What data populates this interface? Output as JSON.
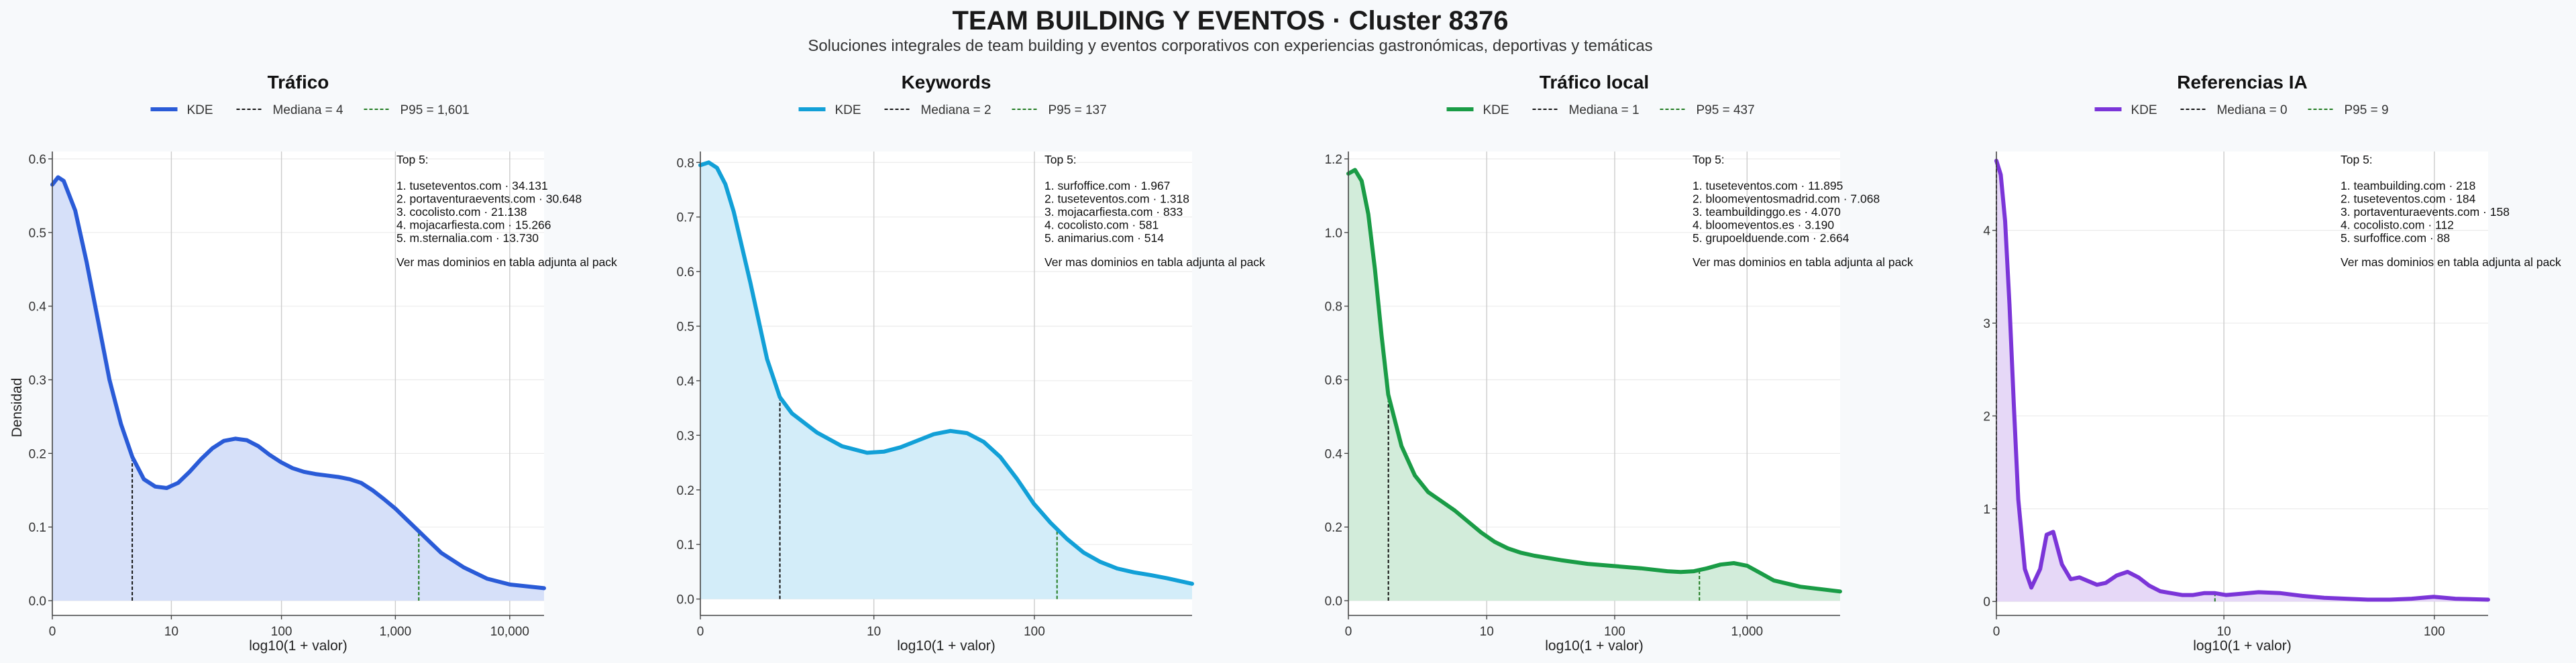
{
  "figure": {
    "title": "TEAM BUILDING Y EVENTOS · Cluster 8376",
    "subtitle": "Soluciones integrales de team building y eventos corporativos con experiencias gastronómicas, deportivas y temáticas",
    "ylabel": "Densidad"
  },
  "chart_data": [
    {
      "type": "area",
      "title": "Tráfico",
      "color": "#2a5bd7",
      "fill": "#d6e0f9",
      "xlabel": "log10(1 + valor)",
      "ylabel": "Densidad",
      "x_scale": "log10(1+x)",
      "xlim": [
        0,
        4.3
      ],
      "ylim": [
        -0.02,
        0.61
      ],
      "xticks": [
        {
          "v": 0,
          "label": "0"
        },
        {
          "v": 1.041,
          "label": "10"
        },
        {
          "v": 2.004,
          "label": "100"
        },
        {
          "v": 3.0,
          "label": "1,000"
        },
        {
          "v": 4.0,
          "label": "10,000"
        }
      ],
      "yticks": [
        {
          "v": 0,
          "label": "0.0"
        },
        {
          "v": 0.1,
          "label": "0.1"
        },
        {
          "v": 0.2,
          "label": "0.2"
        },
        {
          "v": 0.3,
          "label": "0.3"
        },
        {
          "v": 0.4,
          "label": "0.4"
        },
        {
          "v": 0.5,
          "label": "0.5"
        },
        {
          "v": 0.6,
          "label": "0.6"
        }
      ],
      "series": [
        {
          "name": "KDE",
          "x": [
            0,
            0.05,
            0.1,
            0.2,
            0.3,
            0.4,
            0.5,
            0.6,
            0.7,
            0.8,
            0.9,
            1.0,
            1.1,
            1.2,
            1.3,
            1.4,
            1.5,
            1.6,
            1.7,
            1.8,
            1.9,
            2.0,
            2.1,
            2.2,
            2.3,
            2.4,
            2.5,
            2.6,
            2.7,
            2.8,
            2.9,
            3.0,
            3.1,
            3.2,
            3.3,
            3.4,
            3.6,
            3.8,
            4.0,
            4.3
          ],
          "y": [
            0.565,
            0.575,
            0.57,
            0.53,
            0.46,
            0.38,
            0.3,
            0.24,
            0.195,
            0.165,
            0.155,
            0.153,
            0.16,
            0.175,
            0.192,
            0.207,
            0.217,
            0.22,
            0.218,
            0.21,
            0.198,
            0.188,
            0.18,
            0.175,
            0.172,
            0.17,
            0.168,
            0.165,
            0.16,
            0.15,
            0.138,
            0.125,
            0.11,
            0.095,
            0.08,
            0.065,
            0.045,
            0.03,
            0.022,
            0.017
          ]
        }
      ],
      "median": {
        "label": "Mediana = 4",
        "value": 4
      },
      "p95": {
        "label": "P95 = 1,601",
        "value": 1601
      },
      "top": {
        "heading": "Top 5:",
        "items": [
          "1. tuseteventos.com · 34.131",
          "2. portaventuraevents.com · 30.648",
          "3. cocolisto.com · 21.138",
          "4. mojacarfiesta.com · 15.266",
          "5. m.sternalia.com · 13.730"
        ],
        "note": "Ver mas dominios en tabla adjunta al pack"
      }
    },
    {
      "type": "area",
      "title": "Keywords",
      "color": "#12a0d7",
      "fill": "#d3edf9",
      "xlabel": "log10(1 + valor)",
      "x_scale": "log10(1+x)",
      "xlim": [
        0,
        2.95
      ],
      "ylim": [
        -0.03,
        0.82
      ],
      "xticks": [
        {
          "v": 0,
          "label": "0"
        },
        {
          "v": 1.041,
          "label": "10"
        },
        {
          "v": 2.004,
          "label": "100"
        }
      ],
      "yticks": [
        {
          "v": 0,
          "label": "0.0"
        },
        {
          "v": 0.1,
          "label": "0.1"
        },
        {
          "v": 0.2,
          "label": "0.2"
        },
        {
          "v": 0.3,
          "label": "0.3"
        },
        {
          "v": 0.4,
          "label": "0.4"
        },
        {
          "v": 0.5,
          "label": "0.5"
        },
        {
          "v": 0.6,
          "label": "0.6"
        },
        {
          "v": 0.7,
          "label": "0.7"
        },
        {
          "v": 0.8,
          "label": "0.8"
        }
      ],
      "series": [
        {
          "name": "KDE",
          "x": [
            0,
            0.05,
            0.1,
            0.15,
            0.2,
            0.3,
            0.4,
            0.477,
            0.55,
            0.7,
            0.85,
            1.0,
            1.1,
            1.2,
            1.3,
            1.4,
            1.5,
            1.6,
            1.7,
            1.8,
            1.9,
            2.0,
            2.1,
            2.2,
            2.3,
            2.4,
            2.5,
            2.6,
            2.7,
            2.8,
            2.95
          ],
          "y": [
            0.795,
            0.8,
            0.79,
            0.76,
            0.71,
            0.58,
            0.44,
            0.37,
            0.34,
            0.305,
            0.28,
            0.268,
            0.27,
            0.278,
            0.29,
            0.302,
            0.308,
            0.304,
            0.288,
            0.26,
            0.22,
            0.175,
            0.14,
            0.11,
            0.085,
            0.068,
            0.056,
            0.049,
            0.044,
            0.038,
            0.028
          ]
        }
      ],
      "median": {
        "label": "Mediana = 2",
        "value": 2
      },
      "p95": {
        "label": "P95 = 137",
        "value": 137
      },
      "top": {
        "heading": "Top 5:",
        "items": [
          "1. surfoffice.com · 1.967",
          "2. tuseteventos.com · 1.318",
          "3. mojacarfiesta.com · 833",
          "4. cocolisto.com · 581",
          "5. animarius.com · 514"
        ],
        "note": "Ver mas dominios en tabla adjunta al pack"
      }
    },
    {
      "type": "area",
      "title": "Tráfico local",
      "color": "#1a9c46",
      "fill": "#d2ecda",
      "xlabel": "log10(1 + valor)",
      "x_scale": "log10(1+x)",
      "xlim": [
        0,
        3.7
      ],
      "ylim": [
        -0.04,
        1.22
      ],
      "xticks": [
        {
          "v": 0,
          "label": "0"
        },
        {
          "v": 1.041,
          "label": "10"
        },
        {
          "v": 2.004,
          "label": "100"
        },
        {
          "v": 3.0,
          "label": "1,000"
        }
      ],
      "yticks": [
        {
          "v": 0,
          "label": "0.0"
        },
        {
          "v": 0.2,
          "label": "0.2"
        },
        {
          "v": 0.4,
          "label": "0.4"
        },
        {
          "v": 0.6,
          "label": "0.6"
        },
        {
          "v": 0.8,
          "label": "0.8"
        },
        {
          "v": 1.0,
          "label": "1.0"
        },
        {
          "v": 1.2,
          "label": "1.2"
        }
      ],
      "series": [
        {
          "name": "KDE",
          "x": [
            0,
            0.05,
            0.1,
            0.15,
            0.2,
            0.25,
            0.3,
            0.4,
            0.5,
            0.6,
            0.7,
            0.8,
            0.9,
            1.0,
            1.1,
            1.2,
            1.3,
            1.4,
            1.6,
            1.8,
            2.0,
            2.2,
            2.4,
            2.5,
            2.6,
            2.7,
            2.8,
            2.9,
            3.0,
            3.1,
            3.2,
            3.4,
            3.7
          ],
          "y": [
            1.16,
            1.17,
            1.14,
            1.05,
            0.9,
            0.72,
            0.56,
            0.42,
            0.34,
            0.295,
            0.27,
            0.245,
            0.215,
            0.185,
            0.16,
            0.142,
            0.13,
            0.122,
            0.11,
            0.1,
            0.094,
            0.088,
            0.08,
            0.078,
            0.08,
            0.088,
            0.098,
            0.102,
            0.095,
            0.075,
            0.055,
            0.038,
            0.025
          ]
        }
      ],
      "median": {
        "label": "Mediana = 1",
        "value": 1
      },
      "p95": {
        "label": "P95 = 437",
        "value": 437
      },
      "top": {
        "heading": "Top 5:",
        "items": [
          "1. tuseteventos.com · 11.895",
          "2. bloomeventosmadrid.com · 7.068",
          "3. teambuildinggo.es · 4.070",
          "4. bloomeventos.es · 3.190",
          "5. grupoelduende.com · 2.664"
        ],
        "note": "Ver mas dominios en tabla adjunta al pack"
      }
    },
    {
      "type": "area",
      "title": "Referencias IA",
      "color": "#7b35d8",
      "fill": "#e6d8f7",
      "xlabel": "log10(1 + valor)",
      "x_scale": "log10(1+x)",
      "xlim": [
        0,
        2.25
      ],
      "ylim": [
        -0.15,
        4.85
      ],
      "xticks": [
        {
          "v": 0,
          "label": "0"
        },
        {
          "v": 1.041,
          "label": "10"
        },
        {
          "v": 2.004,
          "label": "100"
        }
      ],
      "yticks": [
        {
          "v": 0,
          "label": "0"
        },
        {
          "v": 1,
          "label": "1"
        },
        {
          "v": 2,
          "label": "2"
        },
        {
          "v": 3,
          "label": "3"
        },
        {
          "v": 4,
          "label": "4"
        }
      ],
      "series": [
        {
          "name": "KDE",
          "x": [
            0,
            0.02,
            0.04,
            0.06,
            0.08,
            0.1,
            0.13,
            0.16,
            0.2,
            0.23,
            0.26,
            0.3,
            0.34,
            0.38,
            0.42,
            0.46,
            0.5,
            0.55,
            0.6,
            0.65,
            0.7,
            0.75,
            0.8,
            0.85,
            0.9,
            0.95,
            1.0,
            1.05,
            1.1,
            1.2,
            1.3,
            1.4,
            1.5,
            1.6,
            1.7,
            1.8,
            1.9,
            2.0,
            2.1,
            2.25
          ],
          "y": [
            4.75,
            4.6,
            4.1,
            3.2,
            2.1,
            1.1,
            0.35,
            0.15,
            0.35,
            0.72,
            0.75,
            0.4,
            0.24,
            0.26,
            0.22,
            0.18,
            0.2,
            0.28,
            0.32,
            0.26,
            0.17,
            0.11,
            0.09,
            0.07,
            0.07,
            0.09,
            0.09,
            0.07,
            0.08,
            0.1,
            0.09,
            0.06,
            0.04,
            0.03,
            0.02,
            0.02,
            0.03,
            0.05,
            0.03,
            0.02
          ]
        }
      ],
      "median": {
        "label": "Mediana = 0",
        "value": 0
      },
      "p95": {
        "label": "P95 = 9",
        "value": 9
      },
      "top": {
        "heading": "Top 5:",
        "items": [
          "1. teambuilding.com · 218",
          "2. tuseteventos.com · 184",
          "3. portaventuraevents.com · 158",
          "4. cocolisto.com · 112",
          "5. surfoffice.com · 88"
        ],
        "note": "Ver mas dominios en tabla adjunta al pack"
      }
    }
  ]
}
